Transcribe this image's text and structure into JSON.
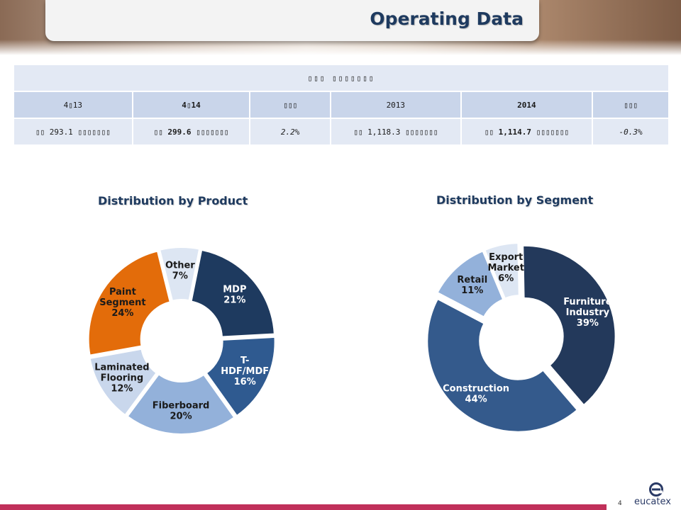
{
  "header": {
    "title": "Operating Data"
  },
  "table": {
    "title": "▯▯▯ ▯▯▯▯▯▯▯",
    "columns": [
      "4▯13",
      "4▯14",
      "▯▯▯",
      "2013",
      "2014",
      "▯▯▯"
    ],
    "values": [
      "▯▯ 293.1 ▯▯▯▯▯▯▯",
      "▯▯ 299.6 ▯▯▯▯▯▯▯",
      "2.2%",
      "▯▯ 1,118.3 ▯▯▯▯▯▯▯",
      "▯▯ 1,114.7 ▯▯▯▯▯▯▯",
      "-0.3%"
    ]
  },
  "chart_data": [
    {
      "type": "pie",
      "title": "Distribution by Product",
      "labels": [
        "Other",
        "MDP",
        "T-HDF/MDF",
        "Fiberboard",
        "Laminated Flooring",
        "Paint Segment"
      ],
      "values": [
        7,
        21,
        16,
        20,
        12,
        24
      ],
      "colors": [
        "#dde6f3",
        "#1e3a5f",
        "#2f5a90",
        "#93b1da",
        "#c9d7ec",
        "#e36c0a"
      ],
      "label_lines": [
        [
          "Other",
          "7%"
        ],
        [
          "MDP",
          "21%"
        ],
        [
          "T-",
          "HDF/MDF",
          "16%"
        ],
        [
          "Fiberboard",
          "20%"
        ],
        [
          "Laminated",
          "Flooring",
          "12%"
        ],
        [
          "Paint",
          "Segment",
          "24%"
        ]
      ],
      "label_colors": [
        "#1a1a1a",
        "#ffffff",
        "#ffffff",
        "#1a1a1a",
        "#1a1a1a",
        "#1a1a1a"
      ]
    },
    {
      "type": "pie",
      "title": "Distribution by Segment",
      "labels": [
        "Furniture Industry",
        "Construction",
        "Retail",
        "Export Market"
      ],
      "values": [
        39,
        44,
        11,
        6
      ],
      "colors": [
        "#23395b",
        "#345a8c",
        "#93b1da",
        "#dde6f3"
      ],
      "label_lines": [
        [
          "Furniture",
          "Industry",
          "39%"
        ],
        [
          "Construction",
          "44%"
        ],
        [
          "Retail",
          "11%"
        ],
        [
          "Export",
          "Market",
          "6%"
        ]
      ],
      "label_colors": [
        "#ffffff",
        "#ffffff",
        "#1a1a1a",
        "#1a1a1a"
      ]
    }
  ],
  "footer": {
    "page_number": "4",
    "logo_text": "eucatex"
  },
  "colors": {
    "accent": "#c0305a",
    "brand": "#1e3a5f"
  }
}
